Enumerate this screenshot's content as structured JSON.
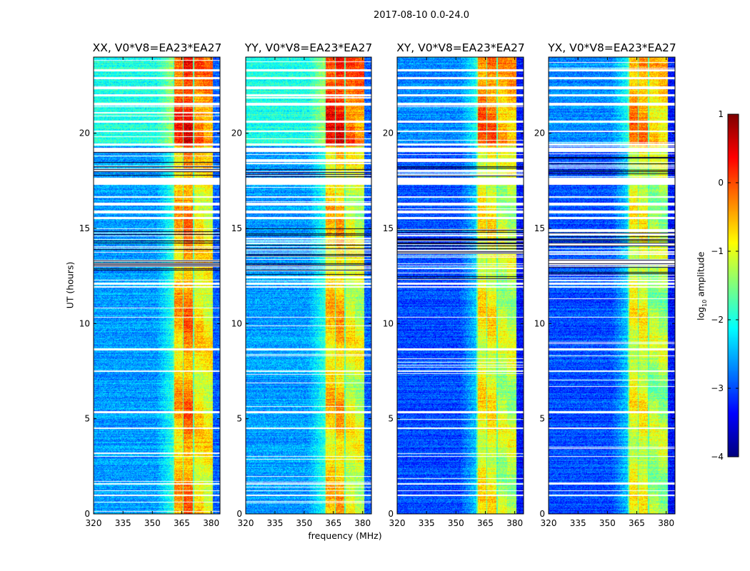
{
  "figure": {
    "suptitle": "2017-08-10 0.0-24.0",
    "xlabel": "frequency (MHz)",
    "ylabel": "UT (hours)",
    "colorbar_label": "log10 amplitude",
    "colorbar_label_main": "log",
    "colorbar_label_sub": "10",
    "colorbar_label_rest": " amplitude"
  },
  "chart_data": {
    "type": "heatmap",
    "colormap": "jet",
    "clim": [
      -4,
      1
    ],
    "colorbar_ticks": [
      "1",
      "0",
      "−1",
      "−2",
      "−3",
      "−4"
    ],
    "colorbar_tick_values": [
      1,
      0,
      -1,
      -2,
      -3,
      -4
    ],
    "xlim": [
      320,
      384.5
    ],
    "ylim": [
      0,
      24
    ],
    "xticks": [
      320,
      335,
      350,
      365,
      380
    ],
    "xtick_labels": [
      "320",
      "335",
      "350",
      "365",
      "380"
    ],
    "yticks": [
      0,
      5,
      10,
      15,
      20
    ],
    "ytick_labels": [
      "0",
      "5",
      "10",
      "15",
      "20"
    ],
    "flagged_hours": [
      [
        23.25,
        23.35
      ],
      [
        22.85,
        22.95
      ],
      [
        22.3,
        22.45
      ],
      [
        21.95,
        22.05
      ],
      [
        21.45,
        21.6
      ],
      [
        20.55,
        20.65
      ],
      [
        20.05,
        20.15
      ],
      [
        19.35,
        19.45
      ],
      [
        19.0,
        19.25
      ],
      [
        17.3,
        17.65
      ],
      [
        16.6,
        16.7
      ],
      [
        16.2,
        16.35
      ],
      [
        15.8,
        15.95
      ],
      [
        15.5,
        15.6
      ],
      [
        12.05,
        12.15
      ],
      [
        11.9,
        11.98
      ],
      [
        10.3,
        10.35
      ],
      [
        8.6,
        8.7
      ],
      [
        7.45,
        7.55
      ],
      [
        5.3,
        5.4
      ],
      [
        4.45,
        4.55
      ],
      [
        3.0,
        3.05
      ],
      [
        1.55,
        1.62
      ],
      [
        1.2,
        1.25
      ],
      [
        0.95,
        1.0
      ]
    ],
    "dense_flag_zones": [
      [
        17.7,
        19.0
      ],
      [
        12.2,
        15.0
      ]
    ],
    "bands_mhz": [
      [
        361,
        365.7
      ],
      [
        366,
        370.7
      ],
      [
        371.2,
        376
      ],
      [
        376.2,
        380.8
      ]
    ],
    "panels": [
      {
        "title": "XX, V0*V8=EA23*EA27",
        "background_level": -2.6,
        "late_level": -2.0,
        "band_levels": [
          -0.6,
          -0.3,
          -0.8,
          -0.9
        ],
        "late_band_boost": 0.6
      },
      {
        "title": "YY, V0*V8=EA23*EA27",
        "background_level": -2.6,
        "late_level": -2.0,
        "band_levels": [
          -0.7,
          -0.6,
          -1.0,
          -1.1
        ],
        "late_band_boost": 0.9
      },
      {
        "title": "XY, V0*V8=EA23*EA27",
        "background_level": -3.0,
        "late_level": -2.7,
        "band_levels": [
          -0.9,
          -0.9,
          -1.2,
          -1.2
        ],
        "late_band_boost": 0.7
      },
      {
        "title": "YX, V0*V8=EA23*EA27",
        "background_level": -3.0,
        "late_level": -2.7,
        "band_levels": [
          -1.0,
          -1.0,
          -1.3,
          -1.3
        ],
        "late_band_boost": 0.6
      }
    ]
  }
}
